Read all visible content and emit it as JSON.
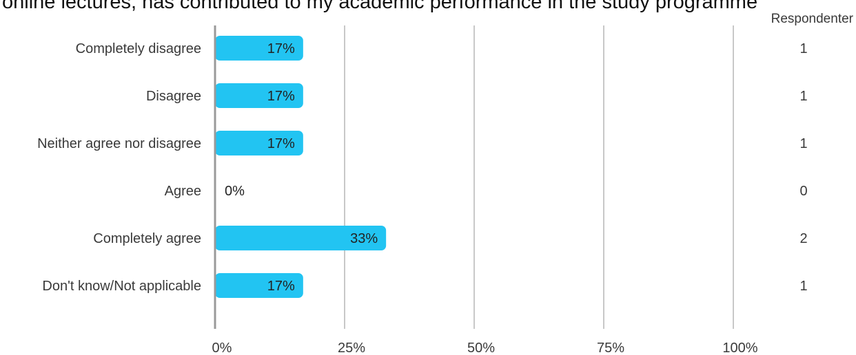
{
  "chart_data": {
    "type": "bar",
    "orientation": "horizontal",
    "title": "online lectures, has contributed to my academic performance in the study programme",
    "categories": [
      "Completely disagree",
      "Disagree",
      "Neither agree nor disagree",
      "Agree",
      "Completely agree",
      "Don't know/Not applicable"
    ],
    "values": [
      17,
      17,
      17,
      0,
      33,
      17
    ],
    "value_labels": [
      "17%",
      "17%",
      "17%",
      "0%",
      "33%",
      "17%"
    ],
    "counts": [
      1,
      1,
      1,
      0,
      2,
      1
    ],
    "count_header": "Respondenter",
    "xlim": [
      0,
      100
    ],
    "x_ticks": [
      0,
      25,
      50,
      75,
      100
    ],
    "x_tick_labels": [
      "0%",
      "25%",
      "50%",
      "75%",
      "100%"
    ],
    "grid": true,
    "bar_color": "#22c4f2"
  }
}
